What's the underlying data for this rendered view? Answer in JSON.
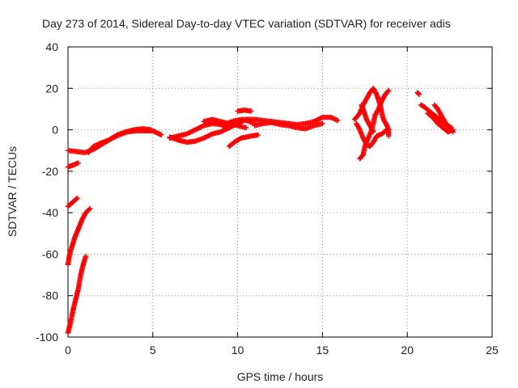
{
  "chart_data": {
    "type": "scatter",
    "title": "Day 273 of 2014, Sidereal Day-to-day VTEC variation (SDTVAR) for receiver adis",
    "xlabel": "GPS time / hours",
    "ylabel": "SDTVAR / TECUs",
    "xlim": [
      0,
      25
    ],
    "ylim": [
      -100,
      40
    ],
    "xticks": [
      0,
      5,
      10,
      15,
      20,
      25
    ],
    "yticks": [
      -100,
      -80,
      -60,
      -40,
      -20,
      0,
      20,
      40
    ],
    "grid": true,
    "marker": "+",
    "series": [
      {
        "name": "SDTVAR",
        "color": "#ff0000",
        "tracks": [
          [
            [
              0,
              -37
            ],
            [
              0.2,
              -35.5
            ],
            [
              0.4,
              -34
            ],
            [
              0.55,
              -33
            ]
          ],
          [
            [
              0,
              -65
            ],
            [
              0.1,
              -60
            ],
            [
              0.25,
              -56
            ],
            [
              0.4,
              -52
            ],
            [
              0.55,
              -49
            ],
            [
              0.7,
              -46
            ],
            [
              0.85,
              -43
            ],
            [
              1.05,
              -40
            ],
            [
              1.3,
              -38
            ]
          ],
          [
            [
              0,
              -98
            ],
            [
              0.15,
              -93
            ],
            [
              0.3,
              -87
            ],
            [
              0.45,
              -82
            ],
            [
              0.6,
              -77
            ],
            [
              0.75,
              -70
            ],
            [
              0.9,
              -65
            ],
            [
              1.05,
              -61
            ]
          ],
          [
            [
              0,
              -18
            ],
            [
              0.3,
              -17
            ],
            [
              0.6,
              -16
            ]
          ],
          [
            [
              0,
              -10
            ],
            [
              0.5,
              -10.5
            ],
            [
              1.0,
              -11
            ],
            [
              1.5,
              -9.5
            ],
            [
              2.0,
              -7
            ],
            [
              2.5,
              -4.5
            ],
            [
              3.0,
              -2.5
            ],
            [
              3.5,
              -1
            ],
            [
              4.0,
              -0.5
            ],
            [
              4.5,
              -0.5
            ],
            [
              5.0,
              -0.5
            ],
            [
              5.5,
              -2.5
            ]
          ],
          [
            [
              1.2,
              -11
            ],
            [
              1.5,
              -8
            ],
            [
              1.9,
              -6.5
            ],
            [
              2.4,
              -5
            ],
            [
              2.9,
              -2.5
            ],
            [
              3.4,
              -1
            ],
            [
              3.9,
              0
            ],
            [
              4.4,
              0.5
            ],
            [
              4.9,
              0
            ]
          ],
          [
            [
              6.0,
              -4
            ],
            [
              6.5,
              -3
            ],
            [
              7.0,
              -2
            ],
            [
              7.5,
              0
            ],
            [
              8.0,
              2
            ],
            [
              8.5,
              3
            ],
            [
              9.0,
              2.5
            ],
            [
              9.5,
              1
            ]
          ],
          [
            [
              6.0,
              -3.5
            ],
            [
              6.5,
              -5
            ],
            [
              7.0,
              -6
            ],
            [
              7.5,
              -5.5
            ],
            [
              8.0,
              -4
            ],
            [
              8.5,
              -2
            ],
            [
              9.0,
              -1
            ],
            [
              9.5,
              1
            ],
            [
              10.0,
              3
            ],
            [
              10.5,
              5
            ]
          ],
          [
            [
              8.0,
              4
            ],
            [
              8.5,
              5
            ],
            [
              9.0,
              4
            ],
            [
              9.5,
              3
            ],
            [
              10.0,
              2
            ],
            [
              10.5,
              1
            ]
          ],
          [
            [
              9.5,
              -8
            ],
            [
              9.8,
              -6
            ],
            [
              10.2,
              -4
            ],
            [
              10.8,
              -3
            ],
            [
              11.2,
              -2.5
            ]
          ],
          [
            [
              9.5,
              3.5
            ],
            [
              9.9,
              4.5
            ],
            [
              10.3,
              5
            ],
            [
              10.7,
              4
            ],
            [
              11.0,
              3
            ]
          ],
          [
            [
              10.0,
              9
            ],
            [
              10.4,
              9.5
            ],
            [
              10.8,
              9
            ]
          ],
          [
            [
              10.5,
              5
            ],
            [
              11.0,
              5
            ],
            [
              11.5,
              4.5
            ],
            [
              12.0,
              4
            ],
            [
              12.5,
              3.5
            ],
            [
              13.0,
              3
            ],
            [
              13.5,
              2.5
            ],
            [
              14.0,
              3
            ],
            [
              14.5,
              4
            ],
            [
              15.0,
              6
            ],
            [
              15.5,
              6
            ],
            [
              15.9,
              4.5
            ]
          ],
          [
            [
              11.0,
              2
            ],
            [
              11.5,
              3
            ],
            [
              12.0,
              3.5
            ],
            [
              12.5,
              2.5
            ],
            [
              13.0,
              2
            ],
            [
              13.5,
              1
            ],
            [
              14.0,
              0.5
            ],
            [
              14.5,
              2
            ],
            [
              15.0,
              3
            ]
          ],
          [
            [
              16.9,
              5
            ],
            [
              17.2,
              8
            ],
            [
              17.4,
              12
            ],
            [
              17.6,
              15
            ],
            [
              17.8,
              18
            ],
            [
              18.0,
              20
            ],
            [
              18.2,
              17
            ],
            [
              18.4,
              12
            ],
            [
              18.5,
              8
            ],
            [
              18.6,
              5
            ],
            [
              18.8,
              2
            ],
            [
              18.9,
              0
            ],
            [
              18.9,
              -3
            ]
          ],
          [
            [
              17.2,
              -14
            ],
            [
              17.4,
              -12
            ],
            [
              17.5,
              -8
            ],
            [
              17.7,
              -4
            ],
            [
              17.9,
              0
            ],
            [
              18.0,
              3
            ],
            [
              18.1,
              7
            ],
            [
              18.3,
              10
            ],
            [
              18.5,
              14
            ],
            [
              18.7,
              17
            ],
            [
              18.9,
              19
            ]
          ],
          [
            [
              17.0,
              3
            ],
            [
              17.2,
              0
            ],
            [
              17.4,
              -4
            ],
            [
              17.6,
              -7
            ],
            [
              17.8,
              -8
            ],
            [
              18.0,
              -6
            ],
            [
              18.2,
              -3
            ],
            [
              18.5,
              -2
            ],
            [
              18.8,
              0
            ]
          ],
          [
            [
              17.3,
              12
            ],
            [
              17.4,
              10
            ],
            [
              17.6,
              5
            ],
            [
              17.8,
              2
            ],
            [
              18.0,
              -1
            ]
          ],
          [
            [
              20.6,
              18
            ],
            [
              20.7,
              17
            ]
          ],
          [
            [
              20.8,
              12
            ],
            [
              21.0,
              11
            ],
            [
              21.3,
              9
            ],
            [
              21.6,
              7
            ],
            [
              21.9,
              5
            ],
            [
              22.2,
              3
            ],
            [
              22.5,
              1
            ],
            [
              22.7,
              -1
            ]
          ],
          [
            [
              21.2,
              8
            ],
            [
              21.5,
              6
            ],
            [
              21.8,
              3
            ],
            [
              22.1,
              1
            ],
            [
              22.4,
              -1
            ],
            [
              22.7,
              0
            ]
          ],
          [
            [
              21.6,
              12
            ],
            [
              21.8,
              10
            ],
            [
              22.0,
              7
            ],
            [
              22.2,
              4
            ],
            [
              22.4,
              2
            ],
            [
              22.6,
              1
            ]
          ]
        ]
      }
    ]
  }
}
